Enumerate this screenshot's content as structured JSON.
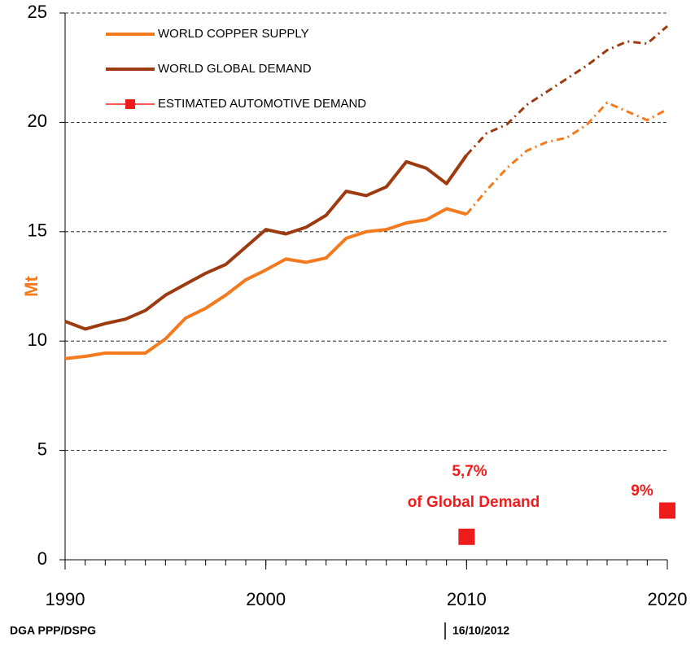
{
  "chart_data": {
    "type": "line",
    "y_label": "Mt",
    "x": [
      1990,
      1991,
      1992,
      1993,
      1994,
      1995,
      1996,
      1997,
      1998,
      1999,
      2000,
      2001,
      2002,
      2003,
      2004,
      2005,
      2006,
      2007,
      2008,
      2009,
      2010,
      2011,
      2012,
      2013,
      2014,
      2015,
      2016,
      2017,
      2018,
      2019,
      2020
    ],
    "projected_from": 2010,
    "series": [
      {
        "name": "WORLD COPPER SUPPLY",
        "color": "#f47a20",
        "marker": "line",
        "values": [
          9.2,
          9.3,
          9.45,
          9.45,
          9.45,
          10.1,
          11.05,
          11.5,
          12.1,
          12.8,
          13.25,
          13.75,
          13.6,
          13.8,
          14.7,
          15.0,
          15.1,
          15.4,
          15.55,
          16.05,
          15.8,
          16.9,
          17.9,
          18.7,
          19.1,
          19.3,
          19.9,
          20.9,
          20.5,
          20.1,
          20.6
        ]
      },
      {
        "name": "WORLD GLOBAL DEMAND",
        "color": "#9c3a10",
        "marker": "line",
        "values": [
          10.9,
          10.55,
          10.8,
          11.0,
          11.4,
          12.1,
          12.6,
          13.1,
          13.5,
          14.3,
          15.1,
          14.9,
          15.2,
          15.75,
          16.85,
          16.65,
          17.05,
          18.2,
          17.9,
          17.2,
          18.5,
          19.5,
          19.9,
          20.8,
          21.4,
          22.0,
          22.6,
          23.3,
          23.7,
          23.6,
          24.4
        ]
      },
      {
        "name": "ESTIMATED AUTOMOTIVE DEMAND",
        "color": "#ee1c1c",
        "marker": "square",
        "values": [
          null,
          null,
          null,
          null,
          null,
          null,
          null,
          null,
          null,
          null,
          null,
          null,
          null,
          null,
          null,
          null,
          null,
          null,
          null,
          null,
          1.05,
          null,
          null,
          null,
          null,
          null,
          null,
          null,
          null,
          null,
          2.25
        ]
      }
    ],
    "annotations": [
      "5,7%",
      "of Global Demand",
      "9%"
    ],
    "footer": [
      "DGA PPP/DSPG",
      "16/10/2012"
    ],
    "xlim": [
      1990,
      2020
    ],
    "xticks": [
      1990,
      2000,
      2010,
      2020
    ],
    "ylim": [
      0,
      25
    ],
    "yticks": [
      0,
      5,
      10,
      15,
      20,
      25
    ],
    "grid": true
  }
}
